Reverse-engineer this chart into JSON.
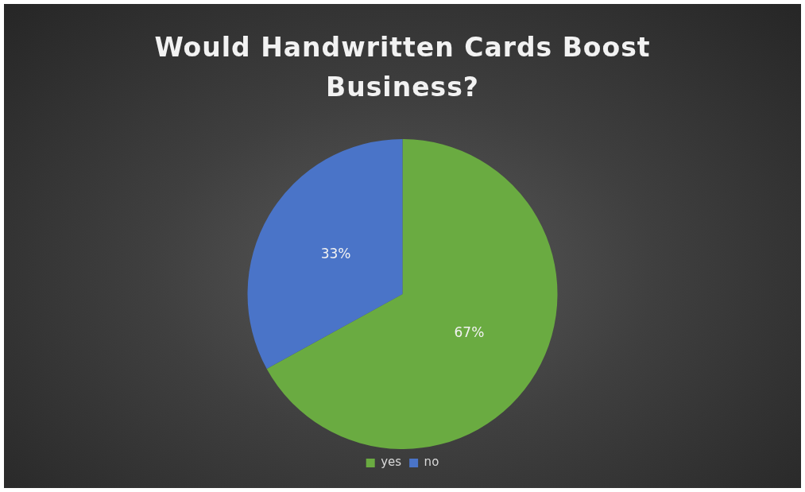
{
  "chart_data": {
    "type": "pie",
    "title": "Would Handwritten Cards Boost Business?",
    "categories": [
      "yes",
      "no"
    ],
    "values": [
      67,
      33
    ],
    "value_labels": [
      "67%",
      "33%"
    ],
    "colors": [
      "#6aab41",
      "#4a74c8"
    ],
    "legend": "bottom"
  }
}
